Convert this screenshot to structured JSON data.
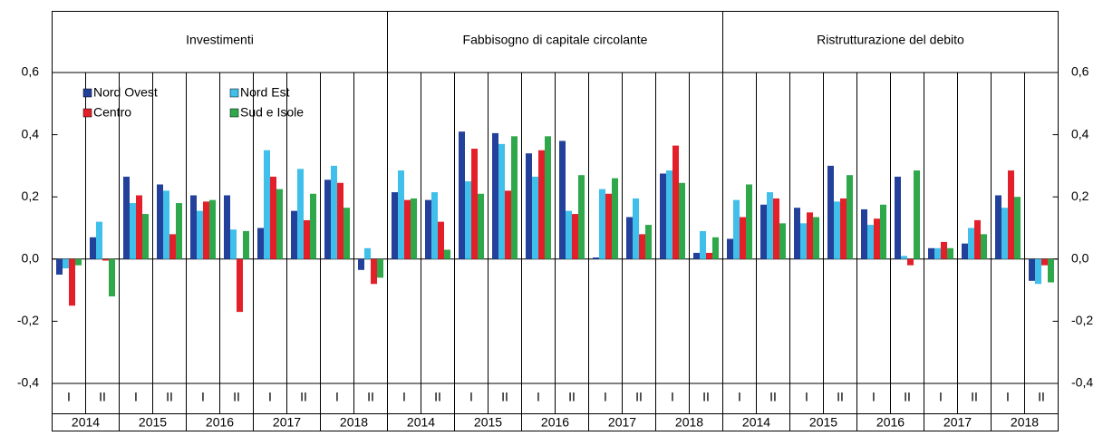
{
  "chart_data": {
    "type": "bar",
    "ylim": [
      -0.4,
      0.6
    ],
    "yticks": [
      {
        "value": -0.4,
        "label": "-0,4"
      },
      {
        "value": -0.2,
        "label": "-0,2"
      },
      {
        "value": 0,
        "label": "0,0"
      },
      {
        "value": 0.2,
        "label": "0,2"
      },
      {
        "value": 0.4,
        "label": "0,4"
      },
      {
        "value": 0.6,
        "label": "0,6"
      }
    ],
    "categories": [
      "I",
      "II",
      "I",
      "II",
      "I",
      "II",
      "I",
      "II",
      "I",
      "II"
    ],
    "years": [
      "2014",
      "2015",
      "2016",
      "2017",
      "2018"
    ],
    "series": [
      {
        "name": "Nord Ovest",
        "color": "#23409a"
      },
      {
        "name": "Nord Est",
        "color": "#3fbfe9"
      },
      {
        "name": "Centro",
        "color": "#e3202a"
      },
      {
        "name": "Sud e Isole",
        "color": "#2ea84a"
      }
    ],
    "panels": [
      {
        "title": "Investimenti",
        "values": [
          [
            -0.05,
            0.07,
            0.265,
            0.24,
            0.205,
            0.205,
            0.1,
            0.155,
            0.255,
            -0.035
          ],
          [
            -0.03,
            0.12,
            0.18,
            0.22,
            0.155,
            0.095,
            0.35,
            0.29,
            0.3,
            0.035
          ],
          [
            -0.15,
            -0.005,
            0.205,
            0.08,
            0.185,
            -0.17,
            0.265,
            0.125,
            0.245,
            -0.08
          ],
          [
            -0.02,
            -0.12,
            0.145,
            0.18,
            0.19,
            0.09,
            0.225,
            0.21,
            0.165,
            -0.06
          ]
        ]
      },
      {
        "title": "Fabbisogno di capitale circolante",
        "values": [
          [
            0.215,
            0.19,
            0.41,
            0.405,
            0.34,
            0.38,
            0.005,
            0.135,
            0.275,
            0.02
          ],
          [
            0.285,
            0.215,
            0.25,
            0.37,
            0.265,
            0.155,
            0.225,
            0.195,
            0.285,
            0.09
          ],
          [
            0.19,
            0.12,
            0.355,
            0.22,
            0.35,
            0.145,
            0.21,
            0.08,
            0.365,
            0.02
          ],
          [
            0.195,
            0.03,
            0.21,
            0.395,
            0.395,
            0.27,
            0.26,
            0.11,
            0.245,
            0.07
          ]
        ]
      },
      {
        "title": "Ristrutturazione del debito",
        "values": [
          [
            0.065,
            0.175,
            0.165,
            0.3,
            0.16,
            0.265,
            0.035,
            0.05,
            0.205,
            -0.07
          ],
          [
            0.19,
            0.215,
            0.115,
            0.185,
            0.11,
            0.01,
            0.035,
            0.1,
            0.165,
            -0.08
          ],
          [
            0.135,
            0.195,
            0.15,
            0.195,
            0.13,
            -0.02,
            0.055,
            0.125,
            0.285,
            -0.02
          ],
          [
            0.24,
            0.115,
            0.135,
            0.27,
            0.175,
            0.285,
            0.035,
            0.08,
            0.2,
            -0.075
          ]
        ]
      }
    ]
  }
}
